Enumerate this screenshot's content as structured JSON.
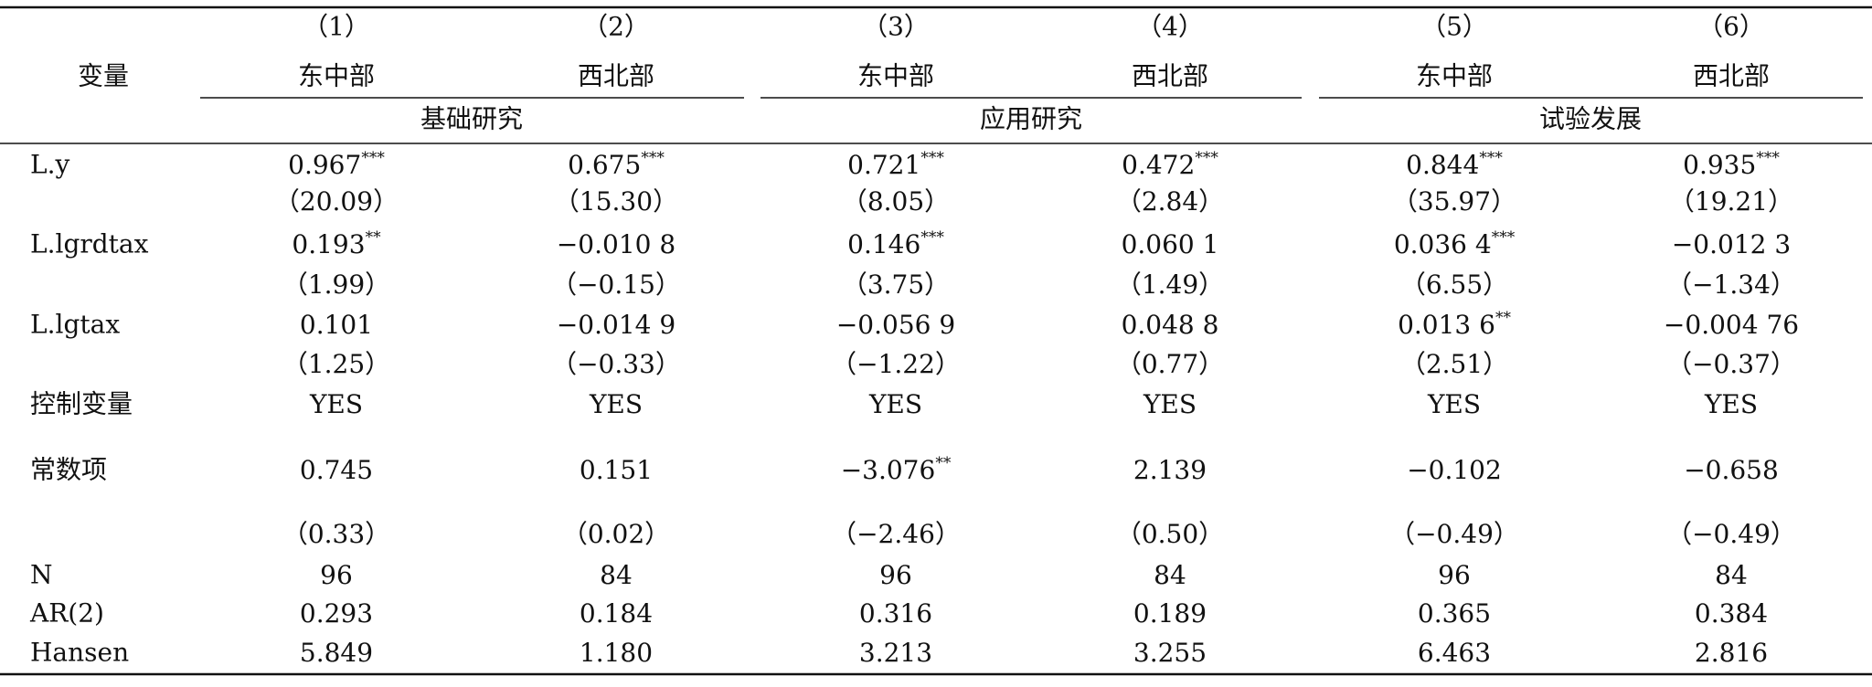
{
  "table": {
    "var_label": "变量",
    "columns": [
      "（1）",
      "（2）",
      "（3）",
      "（4）",
      "（5）",
      "（6）"
    ],
    "regions": [
      "东中部",
      "西北部",
      "东中部",
      "西北部",
      "东中部",
      "西北部"
    ],
    "groups": [
      "基础研究",
      "应用研究",
      "试验发展"
    ],
    "rows": [
      {
        "label": "L.y",
        "cells": [
          {
            "text": "0.967",
            "sup": "***"
          },
          {
            "text": "0.675",
            "sup": "***"
          },
          {
            "text": "0.721",
            "sup": "***"
          },
          {
            "text": "0.472",
            "sup": "***"
          },
          {
            "text": "0.844",
            "sup": "***"
          },
          {
            "text": "0.935",
            "sup": "***"
          }
        ]
      },
      {
        "cells": [
          {
            "text": "（20.09）"
          },
          {
            "text": "（15.30）"
          },
          {
            "text": "（8.05）"
          },
          {
            "text": "（2.84）"
          },
          {
            "text": "（35.97）"
          },
          {
            "text": "（19.21）"
          }
        ]
      },
      {
        "label": "L.lgrdtax",
        "cells": [
          {
            "text": "0.193",
            "sup": "**"
          },
          {
            "text": "−0.010 8"
          },
          {
            "text": "0.146",
            "sup": "***"
          },
          {
            "text": "0.060 1"
          },
          {
            "text": "0.036 4",
            "sup": "***"
          },
          {
            "text": "−0.012 3"
          }
        ]
      },
      {
        "cells": [
          {
            "text": "（1.99）"
          },
          {
            "text": "（−0.15）"
          },
          {
            "text": "（3.75）"
          },
          {
            "text": "（1.49）"
          },
          {
            "text": "（6.55）"
          },
          {
            "text": "（−1.34）"
          }
        ]
      },
      {
        "label": "L.lgtax",
        "cells": [
          {
            "text": "0.101"
          },
          {
            "text": "−0.014 9"
          },
          {
            "text": "−0.056 9"
          },
          {
            "text": "0.048 8"
          },
          {
            "text": "0.013 6",
            "sup": "**"
          },
          {
            "text": "−0.004 76"
          }
        ]
      },
      {
        "cells": [
          {
            "text": "（1.25）"
          },
          {
            "text": "（−0.33）"
          },
          {
            "text": "（−1.22）"
          },
          {
            "text": "（0.77）"
          },
          {
            "text": "（2.51）"
          },
          {
            "text": "（−0.37）"
          }
        ]
      },
      {
        "label": "控制变量",
        "cells": [
          {
            "text": "YES"
          },
          {
            "text": "YES"
          },
          {
            "text": "YES"
          },
          {
            "text": "YES"
          },
          {
            "text": "YES"
          },
          {
            "text": "YES"
          }
        ]
      },
      {
        "label": "常数项",
        "cells": [
          {
            "text": "0.745"
          },
          {
            "text": "0.151"
          },
          {
            "text": "−3.076",
            "sup": "**"
          },
          {
            "text": "2.139"
          },
          {
            "text": "−0.102"
          },
          {
            "text": "−0.658"
          }
        ]
      },
      {
        "cells": [
          {
            "text": "（0.33）"
          },
          {
            "text": "（0.02）"
          },
          {
            "text": "（−2.46）"
          },
          {
            "text": "（0.50）"
          },
          {
            "text": "（−0.49）"
          },
          {
            "text": "（−0.49）"
          }
        ]
      },
      {
        "label": "N",
        "cells": [
          {
            "text": "96"
          },
          {
            "text": "84"
          },
          {
            "text": "96"
          },
          {
            "text": "84"
          },
          {
            "text": "96"
          },
          {
            "text": "84"
          }
        ]
      },
      {
        "label": "AR(2)",
        "cells": [
          {
            "text": "0.293"
          },
          {
            "text": "0.184"
          },
          {
            "text": "0.316"
          },
          {
            "text": "0.189"
          },
          {
            "text": "0.365"
          },
          {
            "text": "0.384"
          }
        ]
      },
      {
        "label": "Hansen",
        "cells": [
          {
            "text": "5.849"
          },
          {
            "text": "1.180"
          },
          {
            "text": "3.213"
          },
          {
            "text": "3.255"
          },
          {
            "text": "6.463"
          },
          {
            "text": "2.816"
          }
        ]
      }
    ]
  }
}
